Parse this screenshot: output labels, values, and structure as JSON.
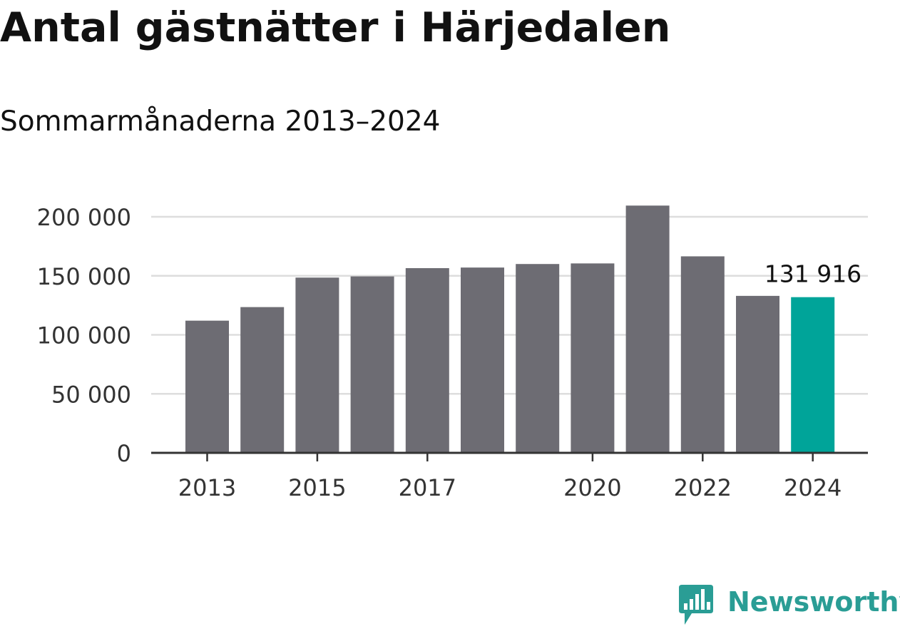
{
  "title": "Antal gästnätter i Härjedalen",
  "subtitle": "Sommarmånaderna 2013–2024",
  "brand": {
    "name": "Newsworthy",
    "color": "#2a9d95"
  },
  "colors": {
    "bar": "#6d6c73",
    "highlight": "#00a499",
    "grid": "#dddddd",
    "axis": "#333333",
    "text": "#333333"
  },
  "chart_data": {
    "type": "bar",
    "categories": [
      "2013",
      "2014",
      "2015",
      "2016",
      "2017",
      "2018",
      "2019",
      "2020",
      "2021",
      "2022",
      "2023",
      "2024"
    ],
    "values": [
      112000,
      123500,
      148500,
      149500,
      156500,
      157000,
      160000,
      160500,
      209500,
      166500,
      133000,
      131916
    ],
    "x_tick_labels": [
      "2013",
      "2015",
      "2017",
      "2020",
      "2022",
      "2024"
    ],
    "y_ticks": [
      0,
      50000,
      100000,
      150000,
      200000
    ],
    "y_tick_labels": [
      "0",
      "50 000",
      "100 000",
      "150 000",
      "200 000"
    ],
    "ylim": [
      0,
      200000
    ],
    "highlight_category": "2024",
    "annotation": {
      "category": "2024",
      "label": "131 916"
    },
    "grid": true,
    "title": "Antal gästnätter i Härjedalen",
    "xlabel": "",
    "ylabel": ""
  }
}
